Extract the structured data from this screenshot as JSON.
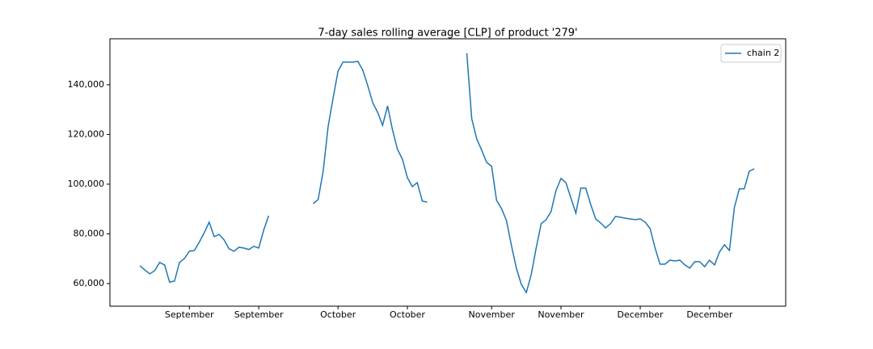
{
  "chart_data": {
    "type": "line",
    "title": "7-day sales rolling average [CLP] of product '279'",
    "categories": [
      null,
      null,
      null,
      null,
      null,
      null,
      null,
      null,
      null,
      null,
      "September",
      null,
      null,
      null,
      null,
      null,
      null,
      null,
      null,
      null,
      null,
      null,
      null,
      null,
      "September",
      null,
      null,
      null,
      null,
      null,
      null,
      null,
      null,
      null,
      null,
      null,
      null,
      null,
      null,
      null,
      "October",
      null,
      null,
      null,
      null,
      null,
      null,
      null,
      null,
      null,
      null,
      null,
      null,
      null,
      "October",
      null,
      null,
      null,
      null,
      null,
      null,
      null,
      null,
      null,
      null,
      null,
      null,
      null,
      null,
      null,
      null,
      "November",
      null,
      null,
      null,
      null,
      null,
      null,
      null,
      null,
      null,
      null,
      null,
      null,
      null,
      "November",
      null,
      null,
      null,
      null,
      null,
      null,
      null,
      null,
      null,
      null,
      null,
      null,
      null,
      null,
      null,
      "December",
      null,
      null,
      null,
      null,
      null,
      null,
      null,
      null,
      null,
      null,
      null,
      null,
      null,
      "December",
      null,
      null,
      null,
      null,
      null,
      null,
      null,
      null,
      null
    ],
    "series": [
      {
        "name": "chain 2",
        "color": "#1f77b4",
        "values": [
          67200,
          65500,
          63900,
          65200,
          68500,
          67500,
          60600,
          61000,
          68500,
          70100,
          73000,
          73300,
          76600,
          80500,
          84700,
          78900,
          79800,
          77600,
          74000,
          73000,
          74600,
          74300,
          73700,
          75000,
          74300,
          81500,
          87300,
          null,
          null,
          null,
          null,
          null,
          null,
          null,
          null,
          92200,
          93800,
          105200,
          123100,
          134500,
          145500,
          149100,
          149100,
          149100,
          149400,
          145900,
          139700,
          132800,
          128900,
          123700,
          131500,
          121800,
          114000,
          110100,
          102600,
          99000,
          100600,
          93200,
          92800,
          null,
          null,
          null,
          null,
          null,
          null,
          null,
          152700,
          126300,
          118200,
          113700,
          108800,
          107200,
          93500,
          90200,
          85400,
          75300,
          66200,
          59700,
          56400,
          63600,
          74300,
          84100,
          85700,
          89000,
          97400,
          102300,
          100600,
          94500,
          88300,
          98400,
          98400,
          91900,
          86000,
          84400,
          82400,
          84100,
          87000,
          86700,
          86300,
          86000,
          85700,
          86000,
          84700,
          82100,
          74300,
          67800,
          67800,
          69400,
          69100,
          69400,
          67500,
          66200,
          68800,
          68800,
          66800,
          69400,
          67500,
          72700,
          75600,
          73300,
          90600,
          98100,
          98100,
          105200,
          106200
        ]
      }
    ],
    "ylim": [
      50900,
      158500
    ],
    "yticks": [
      {
        "value": 60000,
        "label": "60,000"
      },
      {
        "value": 80000,
        "label": "80,000"
      },
      {
        "value": 100000,
        "label": "100,000"
      },
      {
        "value": 120000,
        "label": "120,000"
      },
      {
        "value": 140000,
        "label": "140,000"
      }
    ],
    "legend": "upper right"
  }
}
